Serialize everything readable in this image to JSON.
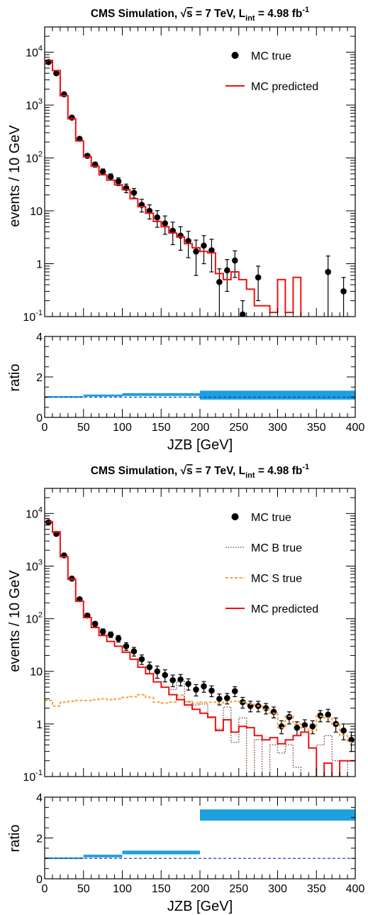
{
  "colors": {
    "data": "#000000",
    "predicted": "#ee1111",
    "b_true": "#6b3a2a",
    "s_true": "#f7a23c",
    "band": "#1e9fde",
    "ratio_line": "#1a3fb8"
  },
  "chart_data": [
    {
      "type": "scatter",
      "title": "CMS Simulation, √s = 7 TeV, L_int = 4.98 fb⁻¹",
      "title_parts": {
        "a": "CMS Simulation, ",
        "sqrt_sym": "√",
        "s": "s",
        "b": " = 7 TeV, L",
        "sub": "int",
        "c": " = 4.98 fb",
        "sup": "-1"
      },
      "xlabel": "",
      "ylabel": "events / 10 GeV",
      "xlim": [
        0,
        400
      ],
      "ylim": [
        0.1,
        30000
      ],
      "log_y": true,
      "x_ticks": [],
      "x_tick_labels": [],
      "y_tick_labels": [
        {
          "v": 0.1,
          "m": "10",
          "e": "-1"
        },
        {
          "v": 1,
          "m": "1",
          "e": ""
        },
        {
          "v": 10,
          "m": "10",
          "e": ""
        },
        {
          "v": 100,
          "m": "10",
          "e": "2"
        },
        {
          "v": 1000,
          "m": "10",
          "e": "3"
        },
        {
          "v": 10000,
          "m": "10",
          "e": "4"
        }
      ],
      "legend": [
        {
          "label": "MC true",
          "kind": "marker",
          "color": "#000000"
        },
        {
          "label": "MC predicted",
          "kind": "line",
          "color": "#ee1111"
        }
      ],
      "legend_position": "top-right",
      "series": [
        {
          "name": "MC true",
          "kind": "points",
          "color": "#000000",
          "x": [
            5,
            15,
            25,
            35,
            45,
            55,
            65,
            75,
            85,
            95,
            105,
            115,
            125,
            135,
            145,
            155,
            165,
            175,
            185,
            195,
            205,
            215,
            225,
            235,
            245,
            255,
            275,
            365,
            385
          ],
          "y": [
            6500,
            4000,
            1600,
            580,
            230,
            110,
            75,
            55,
            44,
            36,
            27,
            22,
            13,
            10,
            7.5,
            5.8,
            4.2,
            3.4,
            2.7,
            1.7,
            2.2,
            1.8,
            0.45,
            0.75,
            1.15,
            0.11,
            0.55,
            0.7,
            0.3
          ],
          "err": [
            300,
            200,
            80,
            30,
            15,
            10,
            8,
            7,
            6,
            6,
            5,
            4.5,
            3.5,
            3,
            2.6,
            2.2,
            1.9,
            1.6,
            1.4,
            1.1,
            1.2,
            1.1,
            0.35,
            0.45,
            0.6,
            0.09,
            0.35,
            0.7,
            0.25
          ]
        },
        {
          "name": "MC predicted",
          "kind": "step",
          "color": "#ee1111",
          "edges": [
            0,
            10,
            20,
            30,
            40,
            50,
            60,
            70,
            80,
            90,
            100,
            110,
            120,
            130,
            140,
            150,
            160,
            170,
            180,
            190,
            200,
            210,
            220,
            230,
            240,
            250,
            260,
            270,
            280,
            290,
            300,
            310,
            320,
            330
          ],
          "y": [
            7000,
            4500,
            1500,
            550,
            210,
            105,
            70,
            48,
            38,
            31,
            25,
            17,
            12,
            9,
            6.3,
            5,
            3.8,
            3.2,
            2.4,
            2.0,
            1.7,
            1.6,
            0.65,
            0.5,
            0.7,
            0.5,
            0.33,
            0.16,
            0.16,
            0.12,
            0.5,
            0.12,
            0.55
          ]
        }
      ]
    },
    {
      "type": "bar",
      "title": "",
      "xlabel": "JZB [GeV]",
      "ylabel": "ratio",
      "xlim": [
        0,
        400
      ],
      "ylim": [
        0,
        4
      ],
      "x_ticks": [
        0,
        50,
        100,
        150,
        200,
        250,
        300,
        350,
        400
      ],
      "x_tick_labels": [
        "0",
        "50",
        "100",
        "150",
        "200",
        "250",
        "300",
        "350",
        "400"
      ],
      "y_tick_labels": [
        {
          "v": 0,
          "m": "0",
          "e": ""
        },
        {
          "v": 2,
          "m": "2",
          "e": ""
        },
        {
          "v": 4,
          "m": "4",
          "e": ""
        }
      ],
      "reference_line": 1,
      "series": [
        {
          "name": "",
          "kind": "band",
          "color": "#1e9fde",
          "bins": [
            {
              "x0": 0,
              "x1": 50,
              "lo": 0.97,
              "hi": 1.05
            },
            {
              "x0": 50,
              "x1": 100,
              "lo": 1.03,
              "hi": 1.13
            },
            {
              "x0": 100,
              "x1": 200,
              "lo": 1.06,
              "hi": 1.2
            },
            {
              "x0": 200,
              "x1": 400,
              "lo": 0.88,
              "hi": 1.32
            }
          ]
        }
      ]
    },
    {
      "type": "scatter",
      "title": "CMS Simulation, √s = 7 TeV, L_int = 4.98 fb⁻¹",
      "title_parts": {
        "a": "CMS Simulation, ",
        "sqrt_sym": "√",
        "s": "s",
        "b": " = 7 TeV, L",
        "sub": "int",
        "c": " = 4.98 fb",
        "sup": "-1"
      },
      "xlabel": "",
      "ylabel": "events / 10 GeV",
      "xlim": [
        0,
        400
      ],
      "ylim": [
        0.1,
        30000
      ],
      "log_y": true,
      "x_ticks": [],
      "x_tick_labels": [],
      "y_tick_labels": [
        {
          "v": 0.1,
          "m": "10",
          "e": "-1"
        },
        {
          "v": 1,
          "m": "1",
          "e": ""
        },
        {
          "v": 10,
          "m": "10",
          "e": ""
        },
        {
          "v": 100,
          "m": "10",
          "e": "2"
        },
        {
          "v": 1000,
          "m": "10",
          "e": "3"
        },
        {
          "v": 10000,
          "m": "10",
          "e": "4"
        }
      ],
      "legend": [
        {
          "label": "MC true",
          "kind": "marker",
          "color": "#000000"
        },
        {
          "label": "MC B true",
          "kind": "dotted",
          "color": "#6b3a2a"
        },
        {
          "label": "MC S true",
          "kind": "dashed",
          "color": "#f7a23c"
        },
        {
          "label": "MC predicted",
          "kind": "line",
          "color": "#ee1111"
        }
      ],
      "legend_position": "top-right",
      "series": [
        {
          "name": "MC true",
          "kind": "points",
          "color": "#000000",
          "x": [
            5,
            15,
            25,
            35,
            45,
            55,
            65,
            75,
            85,
            95,
            105,
            115,
            125,
            135,
            145,
            155,
            165,
            175,
            185,
            195,
            205,
            215,
            225,
            235,
            245,
            255,
            265,
            275,
            285,
            295,
            305,
            315,
            325,
            335,
            345,
            355,
            365,
            375,
            385,
            395
          ],
          "y": [
            6800,
            4100,
            1600,
            580,
            235,
            115,
            80,
            57,
            50,
            42,
            30,
            24,
            17,
            12,
            10,
            8.5,
            6.8,
            7.0,
            5.8,
            4.5,
            5.2,
            4.3,
            3.0,
            3.1,
            4.2,
            2.6,
            2.2,
            2.2,
            2.0,
            1.7,
            0.9,
            1.35,
            0.85,
            0.95,
            0.9,
            1.45,
            1.5,
            1.0,
            0.75,
            0.5
          ],
          "err": [
            300,
            200,
            80,
            30,
            15,
            10,
            8,
            7,
            6,
            6,
            5,
            4.5,
            3.5,
            3,
            2.6,
            2.2,
            1.7,
            1.7,
            1.4,
            1.1,
            1.2,
            1.0,
            0.7,
            0.7,
            0.9,
            0.6,
            0.5,
            0.5,
            0.45,
            0.4,
            0.25,
            0.35,
            0.25,
            0.25,
            0.25,
            0.35,
            0.4,
            0.3,
            0.25,
            0.2
          ]
        },
        {
          "name": "MC S true",
          "kind": "step",
          "color": "#f7a23c",
          "edges": [
            0,
            10,
            20,
            30,
            40,
            50,
            60,
            70,
            80,
            90,
            100,
            110,
            120,
            130,
            140,
            150,
            160,
            170,
            180,
            190,
            200,
            210,
            220,
            230,
            240,
            250,
            260,
            270,
            280,
            290,
            300,
            310,
            320,
            330,
            340,
            350,
            360,
            370,
            380,
            390,
            400
          ],
          "y": [
            2.8,
            2.2,
            2.6,
            2.7,
            2.8,
            2.8,
            2.9,
            3.0,
            2.9,
            3.0,
            3.2,
            3.3,
            3.6,
            3.2,
            2.6,
            2.5,
            2.6,
            3.5,
            2.6,
            2.5,
            2.6,
            2.6,
            2.5,
            2.6,
            2.7,
            2.6,
            2.4,
            2.2,
            1.9,
            1.6,
            0.85,
            1.4,
            1.0,
            0.85,
            0.75,
            1.4,
            1.3,
            1.0,
            0.6,
            0.45
          ]
        },
        {
          "name": "MC B true",
          "kind": "step",
          "color": "#6b3a2a",
          "edges": [
            0,
            10,
            20,
            30,
            40,
            50,
            60,
            70,
            80,
            90,
            100,
            110,
            120,
            130,
            140,
            150,
            160,
            170,
            180,
            190,
            200,
            210,
            220,
            230,
            240,
            250,
            260,
            270,
            280,
            290,
            300,
            310,
            320,
            330,
            340,
            350,
            360,
            370,
            380,
            390,
            400
          ],
          "y": [
            6800,
            4300,
            1500,
            560,
            215,
            105,
            68,
            48,
            37,
            30,
            23,
            17,
            12,
            9,
            6.3,
            5.0,
            4.5,
            6.5,
            2.7,
            2.3,
            2.4,
            1.3,
            0.8,
            2.1,
            0.45,
            1.3,
            0.08,
            0.5,
            0.08,
            0.4,
            0.28,
            0.4,
            0.15,
            0.08,
            0.08,
            0.4,
            0.6,
            0.2,
            0.08,
            0.2
          ]
        },
        {
          "name": "MC predicted",
          "kind": "step",
          "color": "#ee1111",
          "edges": [
            0,
            10,
            20,
            30,
            40,
            50,
            60,
            70,
            80,
            90,
            100,
            110,
            120,
            130,
            140,
            150,
            160,
            170,
            180,
            190,
            200,
            210,
            220,
            230,
            240,
            250,
            260,
            270,
            280,
            290,
            300,
            310,
            320,
            330,
            340,
            350,
            360,
            370,
            380,
            390,
            400
          ],
          "y": [
            7000,
            4500,
            1500,
            560,
            215,
            105,
            68,
            48,
            37,
            30,
            23,
            17,
            12,
            9,
            6.3,
            5.0,
            3.6,
            2.9,
            2.3,
            1.9,
            1.6,
            1.35,
            0.75,
            1.2,
            0.7,
            0.9,
            0.85,
            0.6,
            0.5,
            0.55,
            0.42,
            0.5,
            0.6,
            0.7,
            0.35,
            0.08,
            0.18,
            0.08,
            0.2,
            0.2
          ]
        }
      ]
    },
    {
      "type": "bar",
      "title": "",
      "xlabel": "JZB [GeV]",
      "ylabel": "ratio",
      "xlim": [
        0,
        400
      ],
      "ylim": [
        0,
        4
      ],
      "x_ticks": [
        0,
        50,
        100,
        150,
        200,
        250,
        300,
        350,
        400
      ],
      "x_tick_labels": [
        "0",
        "50",
        "100",
        "150",
        "200",
        "250",
        "300",
        "350",
        "400"
      ],
      "y_tick_labels": [
        {
          "v": 0,
          "m": "0",
          "e": ""
        },
        {
          "v": 2,
          "m": "2",
          "e": ""
        },
        {
          "v": 4,
          "m": "4",
          "e": ""
        }
      ],
      "reference_line": 1,
      "series": [
        {
          "name": "",
          "kind": "band",
          "color": "#1e9fde",
          "bins": [
            {
              "x0": 0,
              "x1": 50,
              "lo": 0.97,
              "hi": 1.05
            },
            {
              "x0": 50,
              "x1": 100,
              "lo": 1.05,
              "hi": 1.18
            },
            {
              "x0": 100,
              "x1": 200,
              "lo": 1.2,
              "hi": 1.38
            },
            {
              "x0": 200,
              "x1": 400,
              "lo": 2.85,
              "hi": 3.4
            }
          ]
        }
      ]
    }
  ]
}
